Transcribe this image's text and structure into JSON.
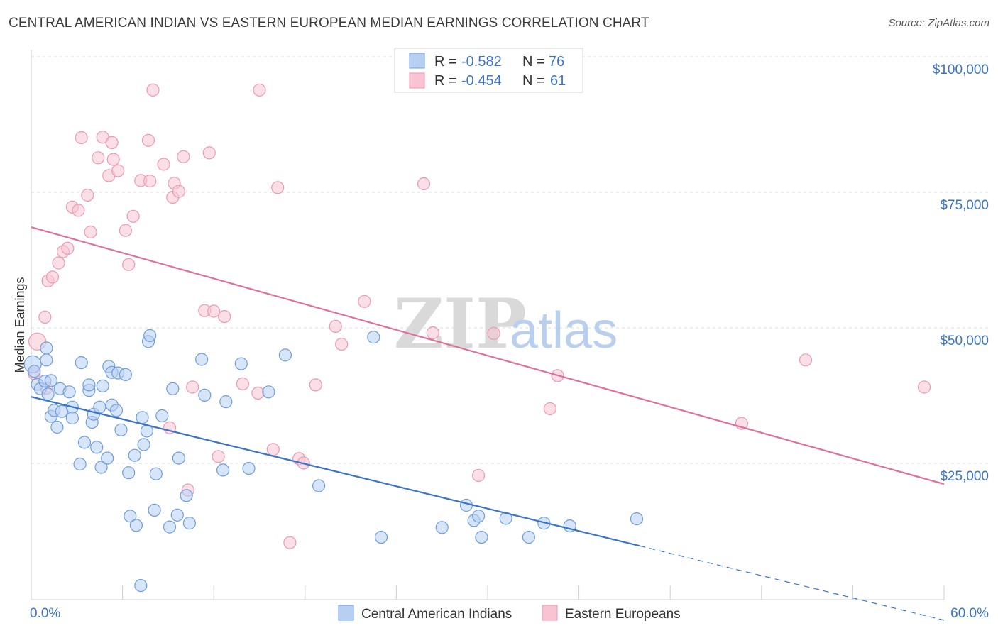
{
  "title": "CENTRAL AMERICAN INDIAN VS EASTERN EUROPEAN MEDIAN EARNINGS CORRELATION CHART",
  "source": "Source: ZipAtlas.com",
  "watermark": {
    "zip": "ZIP",
    "atlas": "atlas"
  },
  "colors": {
    "blue": "#3a74c8",
    "blue_fill": "#b7d0f2",
    "blue_stroke": "#6f9ddd",
    "pink": "#e0709a",
    "pink_fill": "#f8c4d4",
    "pink_stroke": "#ec98b3",
    "grid": "#dcdcdc",
    "axis_text": "#3a74c8"
  },
  "legend_box": {
    "rows": [
      {
        "r_label": "R =",
        "r_value": "-0.582",
        "n_label": "N =",
        "n_value": "76"
      },
      {
        "r_label": "R =",
        "r_value": "-0.454",
        "n_label": "N =",
        "n_value": "61"
      }
    ]
  },
  "chart_data": {
    "type": "scatter",
    "title": "CENTRAL AMERICAN INDIAN VS EASTERN EUROPEAN MEDIAN EARNINGS CORRELATION CHART",
    "xlabel": "",
    "ylabel": "Median Earnings",
    "xlim": [
      0,
      60
    ],
    "ylim": [
      0,
      105000
    ],
    "x_tick_labels": [
      "0.0%",
      "60.0%"
    ],
    "y_ticks": [
      25000,
      50000,
      75000,
      100000
    ],
    "y_tick_labels": [
      "$25,000",
      "$50,000",
      "$75,000",
      "$100,000"
    ],
    "grid": true,
    "legend_position": "bottom",
    "series": [
      {
        "name": "Central American Indians",
        "color": "#3a74c8",
        "r": -0.582,
        "n": 76,
        "trend": {
          "x0": 0,
          "y0": 39500,
          "x1": 40,
          "y1": 12000,
          "dash_to_x": 60,
          "dash_to_y": -1700
        },
        "points": [
          [
            0.1,
            45500
          ],
          [
            0.2,
            44200
          ],
          [
            0.4,
            41800
          ],
          [
            0.6,
            41000
          ],
          [
            0.9,
            42400
          ],
          [
            1.1,
            40000
          ],
          [
            1.0,
            46300
          ],
          [
            1.0,
            48500
          ],
          [
            1.3,
            42500
          ],
          [
            1.3,
            35900
          ],
          [
            1.5,
            37000
          ],
          [
            1.7,
            33900
          ],
          [
            1.9,
            41000
          ],
          [
            2.0,
            36800
          ],
          [
            2.5,
            40400
          ],
          [
            2.7,
            37600
          ],
          [
            2.7,
            35600
          ],
          [
            3.3,
            45800
          ],
          [
            3.5,
            31100
          ],
          [
            3.2,
            27100
          ],
          [
            3.8,
            40700
          ],
          [
            3.8,
            41700
          ],
          [
            4.0,
            34800
          ],
          [
            4.1,
            36300
          ],
          [
            4.3,
            30200
          ],
          [
            4.7,
            41500
          ],
          [
            4.6,
            26500
          ],
          [
            5.0,
            28200
          ],
          [
            5.1,
            45100
          ],
          [
            5.3,
            44000
          ],
          [
            5.3,
            38000
          ],
          [
            5.6,
            37000
          ],
          [
            5.7,
            43900
          ],
          [
            5.9,
            33400
          ],
          [
            6.2,
            43600
          ],
          [
            6.4,
            25500
          ],
          [
            6.5,
            17500
          ],
          [
            6.8,
            28700
          ],
          [
            7.3,
            35700
          ],
          [
            7.4,
            30700
          ],
          [
            7.6,
            33200
          ],
          [
            7.7,
            49700
          ],
          [
            7.8,
            50800
          ],
          [
            8.1,
            18600
          ],
          [
            8.2,
            25300
          ],
          [
            8.6,
            36000
          ],
          [
            9.3,
            41000
          ],
          [
            9.7,
            28200
          ],
          [
            9.6,
            17700
          ],
          [
            10.2,
            21300
          ],
          [
            10.4,
            16200
          ],
          [
            11.2,
            46400
          ],
          [
            11.4,
            39800
          ],
          [
            12.6,
            26000
          ],
          [
            12.8,
            38600
          ],
          [
            13.8,
            45600
          ],
          [
            14.3,
            26300
          ],
          [
            15.6,
            40400
          ],
          [
            16.7,
            47200
          ],
          [
            18.9,
            23100
          ],
          [
            22.5,
            50500
          ],
          [
            23.0,
            13600
          ],
          [
            27.0,
            15400
          ],
          [
            28.6,
            19500
          ],
          [
            29.1,
            16700
          ],
          [
            29.4,
            17500
          ],
          [
            29.6,
            13600
          ],
          [
            31.2,
            17100
          ],
          [
            32.7,
            13600
          ],
          [
            33.7,
            16200
          ],
          [
            35.4,
            15700
          ],
          [
            39.8,
            17000
          ],
          [
            7.2,
            4700
          ],
          [
            4.5,
            37600
          ],
          [
            6.9,
            15800
          ],
          [
            9.1,
            15500
          ]
        ]
      },
      {
        "name": "Eastern Europeans",
        "color": "#e0709a",
        "r": -0.454,
        "n": 61,
        "trend": {
          "x0": 0,
          "y0": 70800,
          "x1": 60,
          "y1": 23400
        },
        "points": [
          [
            0.4,
            49700
          ],
          [
            0.9,
            54200
          ],
          [
            1.1,
            60900
          ],
          [
            1.4,
            61600
          ],
          [
            1.8,
            64200
          ],
          [
            2.1,
            66300
          ],
          [
            2.4,
            66900
          ],
          [
            2.7,
            74500
          ],
          [
            3.1,
            73900
          ],
          [
            3.3,
            87300
          ],
          [
            3.7,
            76700
          ],
          [
            3.9,
            69900
          ],
          [
            4.4,
            83600
          ],
          [
            4.7,
            87400
          ],
          [
            5.1,
            80300
          ],
          [
            5.3,
            86400
          ],
          [
            5.4,
            83300
          ],
          [
            5.7,
            81200
          ],
          [
            6.2,
            70200
          ],
          [
            6.4,
            63900
          ],
          [
            6.7,
            72800
          ],
          [
            7.2,
            79400
          ],
          [
            7.7,
            86800
          ],
          [
            7.8,
            79300
          ],
          [
            8.0,
            96100
          ],
          [
            8.7,
            82400
          ],
          [
            9.1,
            33800
          ],
          [
            9.3,
            76300
          ],
          [
            9.4,
            78900
          ],
          [
            9.7,
            77400
          ],
          [
            10.0,
            83800
          ],
          [
            10.3,
            22300
          ],
          [
            10.6,
            41300
          ],
          [
            11.4,
            55400
          ],
          [
            11.7,
            84500
          ],
          [
            12.0,
            55300
          ],
          [
            12.3,
            28500
          ],
          [
            12.7,
            54300
          ],
          [
            13.9,
            41900
          ],
          [
            14.9,
            40200
          ],
          [
            15.0,
            96100
          ],
          [
            15.9,
            29800
          ],
          [
            16.2,
            78100
          ],
          [
            17.0,
            12600
          ],
          [
            17.6,
            28100
          ],
          [
            17.9,
            27300
          ],
          [
            18.7,
            41700
          ],
          [
            20.0,
            52500
          ],
          [
            20.4,
            49200
          ],
          [
            21.9,
            57100
          ],
          [
            25.8,
            78800
          ],
          [
            26.4,
            51300
          ],
          [
            29.4,
            25000
          ],
          [
            30.4,
            51200
          ],
          [
            34.1,
            37300
          ],
          [
            34.6,
            43400
          ],
          [
            46.7,
            34600
          ],
          [
            50.9,
            46300
          ],
          [
            58.7,
            41300
          ],
          [
            0.2,
            43800
          ],
          [
            1.0,
            41100
          ]
        ]
      }
    ]
  }
}
